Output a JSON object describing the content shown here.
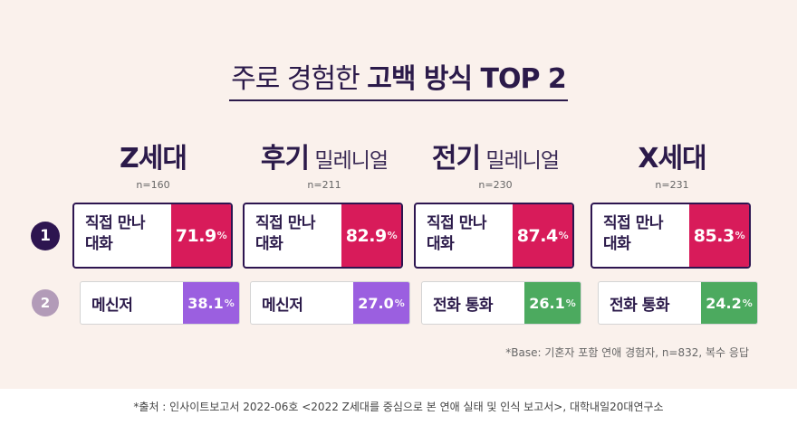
{
  "title": {
    "light": "주로 경험한 ",
    "bold": "고백 방식 TOP 2"
  },
  "generations": [
    {
      "name": "Z세대",
      "name_suffix": "",
      "n": "n=160",
      "top1": {
        "label_line1": "직접 만나",
        "label_line2": "대화",
        "value": "71.9"
      },
      "top2": {
        "label": "메신저",
        "value": "38.1",
        "color": "#9b5fe0"
      }
    },
    {
      "name": "후기",
      "name_suffix": " 밀레니얼",
      "n": "n=211",
      "top1": {
        "label_line1": "직접 만나",
        "label_line2": "대화",
        "value": "82.9"
      },
      "top2": {
        "label": "메신저",
        "value": "27.0",
        "color": "#9b5fe0"
      }
    },
    {
      "name": "전기",
      "name_suffix": " 밀레니얼",
      "n": "n=230",
      "top1": {
        "label_line1": "직접 만나",
        "label_line2": "대화",
        "value": "87.4"
      },
      "top2": {
        "label": "전화 통화",
        "value": "26.1",
        "color": "#4caa5f"
      }
    },
    {
      "name": "X세대",
      "name_suffix": "",
      "n": "n=231",
      "top1": {
        "label_line1": "직접 만나",
        "label_line2": "대화",
        "value": "85.3"
      },
      "top2": {
        "label": "전화 통화",
        "value": "24.2",
        "color": "#4caa5f"
      }
    }
  ],
  "percent_sign": "%",
  "ranks": {
    "first": "1",
    "second": "2"
  },
  "top1_color": "#d81b5a",
  "base_note": "*Base: 기혼자 포함 연애 경험자, n=832, 복수 응답",
  "footer": "*출처 : 인사이트보고서 2022-06호 <2022 Z세대를 중심으로 본 연애 실태 및 인식 보고서>, 대학내일20대연구소"
}
